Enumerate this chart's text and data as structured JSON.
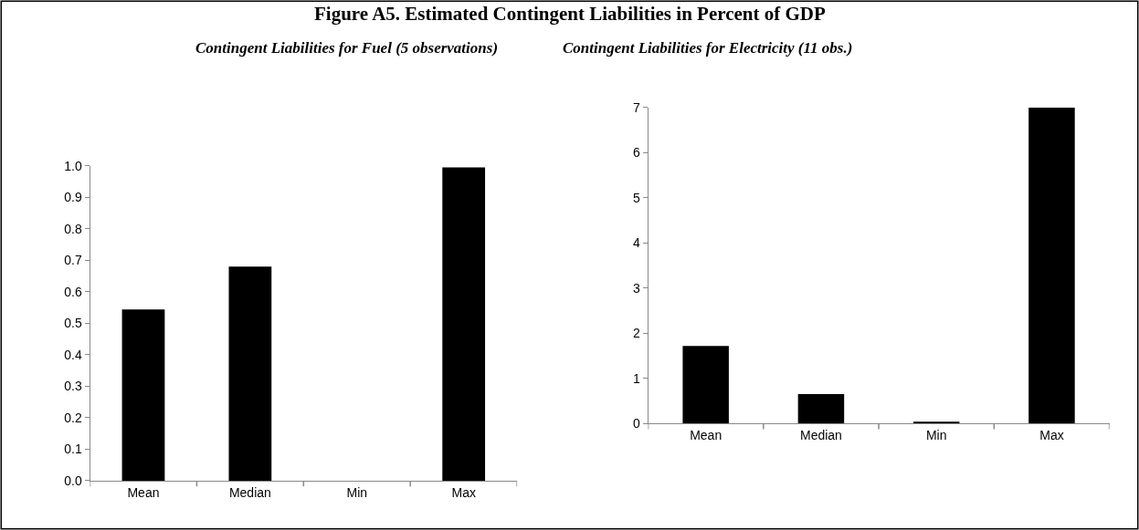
{
  "chart_data": [
    {
      "type": "bar",
      "title": "Figure A5. Estimated Contingent Liabilities in Percent of GDP",
      "subtitle": "Contingent Liabilities for Fuel (5 observations)",
      "categories": [
        "Mean",
        "Median",
        "Min",
        "Max"
      ],
      "values": [
        0.544,
        0.68,
        0,
        0.995
      ],
      "color": "#000000",
      "ylim": [
        0,
        1
      ],
      "yticks": [
        {
          "value": 0,
          "label": "0.0"
        },
        {
          "value": 0.1,
          "label": "0.1"
        },
        {
          "value": 0.2,
          "label": "0.2"
        },
        {
          "value": 0.3,
          "label": "0.3"
        },
        {
          "value": 0.4,
          "label": "0.4"
        },
        {
          "value": 0.5,
          "label": "0.5"
        },
        {
          "value": 0.6,
          "label": "0.6"
        },
        {
          "value": 0.7,
          "label": "0.7"
        },
        {
          "value": 0.8,
          "label": "0.8"
        },
        {
          "value": 0.9,
          "label": "0.9"
        },
        {
          "value": 1,
          "label": "1.0"
        }
      ],
      "grid": false
    },
    {
      "type": "bar",
      "title": "Contingent Liabilities for Electricity (11 obs.)",
      "categories": [
        "Mean",
        "Median",
        "Min",
        "Max"
      ],
      "values": [
        1.72,
        0.65,
        0.04,
        7.0
      ],
      "color": "#000000",
      "ylim": [
        0,
        7
      ],
      "yticks": [
        0,
        1,
        2,
        3,
        4,
        5,
        6,
        7
      ],
      "grid": false
    }
  ]
}
